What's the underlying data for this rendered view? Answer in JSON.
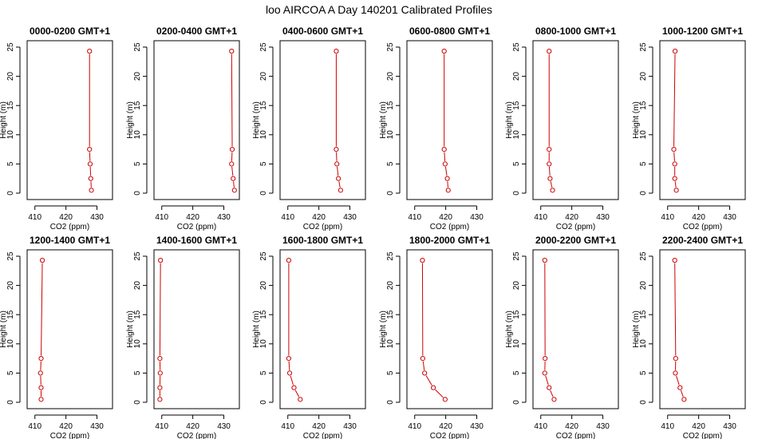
{
  "figure_title": "loo AIRCOA A  Day 140201  Calibrated Profiles",
  "colors": {
    "series": "#cc0000",
    "axis": "#000000",
    "background": "#ffffff"
  },
  "chart_data": [
    {
      "type": "line",
      "title": "0000-0200 GMT+1",
      "xlabel": "CO2 (ppm)",
      "ylabel": "Height (m)",
      "xlim": [
        407.5,
        435
      ],
      "ylim": [
        0,
        25
      ],
      "xticks": [
        410,
        420,
        430
      ],
      "yticks": [
        0,
        5,
        10,
        15,
        20,
        25
      ],
      "series": [
        {
          "x": [
            428.2,
            428.0,
            427.8,
            427.6,
            427.6
          ],
          "y": [
            0.5,
            2.5,
            5,
            7.5,
            24.3
          ]
        }
      ]
    },
    {
      "type": "line",
      "title": "0200-0400 GMT+1",
      "xlabel": "CO2 (ppm)",
      "ylabel": "Height (m)",
      "xlim": [
        407.5,
        435
      ],
      "ylim": [
        0,
        25
      ],
      "xticks": [
        410,
        420,
        430
      ],
      "yticks": [
        0,
        5,
        10,
        15,
        20,
        25
      ],
      "series": [
        {
          "x": [
            433.4,
            433.0,
            432.5,
            432.7,
            432.5
          ],
          "y": [
            0.5,
            2.5,
            5,
            7.5,
            24.3
          ]
        }
      ]
    },
    {
      "type": "line",
      "title": "0400-0600 GMT+1",
      "xlabel": "CO2 (ppm)",
      "ylabel": "Height (m)",
      "xlim": [
        407.5,
        435
      ],
      "ylim": [
        0,
        25
      ],
      "xticks": [
        410,
        420,
        430
      ],
      "yticks": [
        0,
        5,
        10,
        15,
        20,
        25
      ],
      "series": [
        {
          "x": [
            427.0,
            426.3,
            425.8,
            425.6,
            425.6
          ],
          "y": [
            0.5,
            2.5,
            5,
            7.5,
            24.3
          ]
        }
      ]
    },
    {
      "type": "line",
      "title": "0600-0800 GMT+1",
      "xlabel": "CO2 (ppm)",
      "ylabel": "Height (m)",
      "xlim": [
        407.5,
        435
      ],
      "ylim": [
        0,
        25
      ],
      "xticks": [
        410,
        420,
        430
      ],
      "yticks": [
        0,
        5,
        10,
        15,
        20,
        25
      ],
      "series": [
        {
          "x": [
            420.8,
            420.5,
            419.8,
            419.5,
            419.5
          ],
          "y": [
            0.5,
            2.5,
            5,
            7.5,
            24.3
          ]
        }
      ]
    },
    {
      "type": "line",
      "title": "0800-1000 GMT+1",
      "xlabel": "CO2 (ppm)",
      "ylabel": "Height (m)",
      "xlim": [
        407.5,
        435
      ],
      "ylim": [
        0,
        25
      ],
      "xticks": [
        410,
        420,
        430
      ],
      "yticks": [
        0,
        5,
        10,
        15,
        20,
        25
      ],
      "series": [
        {
          "x": [
            413.8,
            413.0,
            412.7,
            412.7,
            412.7
          ],
          "y": [
            0.5,
            2.5,
            5,
            7.5,
            24.3
          ]
        }
      ]
    },
    {
      "type": "line",
      "title": "1000-1200 GMT+1",
      "xlabel": "CO2 (ppm)",
      "ylabel": "Height (m)",
      "xlim": [
        407.5,
        435
      ],
      "ylim": [
        0,
        25
      ],
      "xticks": [
        410,
        420,
        430
      ],
      "yticks": [
        0,
        5,
        10,
        15,
        20,
        25
      ],
      "series": [
        {
          "x": [
            412.8,
            412.3,
            412.3,
            412.0,
            412.4
          ],
          "y": [
            0.5,
            2.5,
            5,
            7.5,
            24.3
          ]
        }
      ]
    },
    {
      "type": "line",
      "title": "1200-1400 GMT+1",
      "xlabel": "CO2 (ppm)",
      "ylabel": "Height (m)",
      "xlim": [
        407.5,
        435
      ],
      "ylim": [
        0,
        25
      ],
      "xticks": [
        410,
        420,
        430
      ],
      "yticks": [
        0,
        5,
        10,
        15,
        20,
        25
      ],
      "series": [
        {
          "x": [
            412.0,
            412.0,
            411.8,
            412.0,
            412.4
          ],
          "y": [
            0.5,
            2.5,
            5,
            7.5,
            24.3
          ]
        }
      ]
    },
    {
      "type": "line",
      "title": "1400-1600 GMT+1",
      "xlabel": "CO2 (ppm)",
      "ylabel": "Height (m)",
      "xlim": [
        407.5,
        435
      ],
      "ylim": [
        0,
        25
      ],
      "xticks": [
        410,
        420,
        430
      ],
      "yticks": [
        0,
        5,
        10,
        15,
        20,
        25
      ],
      "series": [
        {
          "x": [
            409.4,
            409.4,
            409.5,
            409.4,
            409.6
          ],
          "y": [
            0.5,
            2.5,
            5,
            7.5,
            24.3
          ]
        }
      ]
    },
    {
      "type": "line",
      "title": "1600-1800 GMT+1",
      "xlabel": "CO2 (ppm)",
      "ylabel": "Height (m)",
      "xlim": [
        407.5,
        435
      ],
      "ylim": [
        0,
        25
      ],
      "xticks": [
        410,
        420,
        430
      ],
      "yticks": [
        0,
        5,
        10,
        15,
        20,
        25
      ],
      "series": [
        {
          "x": [
            414.0,
            412.0,
            410.6,
            410.3,
            410.3
          ],
          "y": [
            0.5,
            2.5,
            5,
            7.5,
            24.3
          ]
        }
      ]
    },
    {
      "type": "line",
      "title": "1800-2000 GMT+1",
      "xlabel": "CO2 (ppm)",
      "ylabel": "Height (m)",
      "xlim": [
        407.5,
        435
      ],
      "ylim": [
        0,
        25
      ],
      "xticks": [
        410,
        420,
        430
      ],
      "yticks": [
        0,
        5,
        10,
        15,
        20,
        25
      ],
      "series": [
        {
          "x": [
            419.8,
            416.0,
            413.2,
            412.6,
            412.5
          ],
          "y": [
            0.5,
            2.5,
            5,
            7.5,
            24.3
          ]
        }
      ]
    },
    {
      "type": "line",
      "title": "2000-2200 GMT+1",
      "xlabel": "CO2 (ppm)",
      "ylabel": "Height (m)",
      "xlim": [
        407.5,
        435
      ],
      "ylim": [
        0,
        25
      ],
      "xticks": [
        410,
        420,
        430
      ],
      "yticks": [
        0,
        5,
        10,
        15,
        20,
        25
      ],
      "series": [
        {
          "x": [
            414.3,
            412.7,
            411.3,
            411.4,
            411.3
          ],
          "y": [
            0.5,
            2.5,
            5,
            7.5,
            24.3
          ]
        }
      ]
    },
    {
      "type": "line",
      "title": "2200-2400 GMT+1",
      "xlabel": "CO2 (ppm)",
      "ylabel": "Height (m)",
      "xlim": [
        407.5,
        435
      ],
      "ylim": [
        0,
        25
      ],
      "xticks": [
        410,
        420,
        430
      ],
      "yticks": [
        0,
        5,
        10,
        15,
        20,
        25
      ],
      "series": [
        {
          "x": [
            415.3,
            414.0,
            412.5,
            412.6,
            412.3
          ],
          "y": [
            0.5,
            2.5,
            5,
            7.5,
            24.3
          ]
        }
      ]
    }
  ]
}
